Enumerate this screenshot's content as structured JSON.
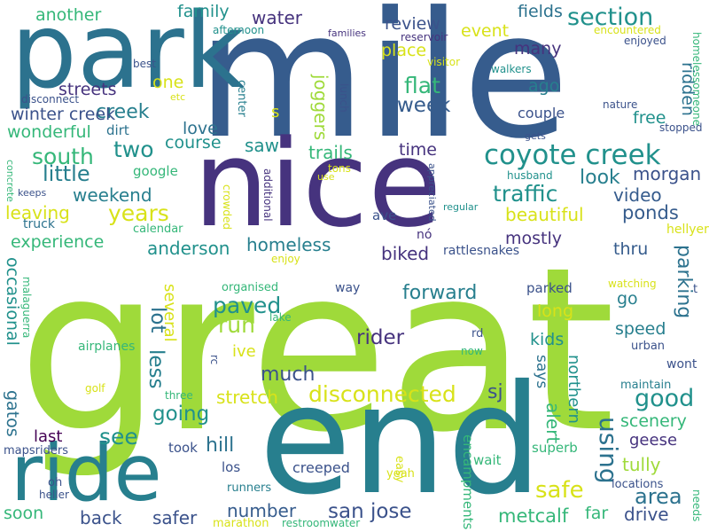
{
  "palette": {
    "purple": "#46337e",
    "indigo": "#3b528b",
    "blue": "#365c8d",
    "teal": "#277f8e",
    "sea": "#21918c",
    "green": "#35b779",
    "lime": "#9fda3a",
    "yellow": "#d8e219",
    "dark": "#440154"
  },
  "words": [
    {
      "text": "great",
      "color": "#9fda3a"
    },
    {
      "text": "mile",
      "color": "#365c8d"
    },
    {
      "text": "end",
      "color": "#277f8e"
    },
    {
      "text": "nice",
      "color": "#46337e"
    },
    {
      "text": "park",
      "color": "#2c728e"
    },
    {
      "text": "ride",
      "color": "#277f8e"
    },
    {
      "text": "coyote creek",
      "color": "#21918c"
    },
    {
      "text": "section",
      "color": "#21918c"
    },
    {
      "text": "disconnected",
      "color": "#d8e219"
    },
    {
      "text": "san jose",
      "color": "#3b528b"
    },
    {
      "text": "south",
      "color": "#35b779"
    },
    {
      "text": "years",
      "color": "#d8e219"
    },
    {
      "text": "paved",
      "color": "#21918c"
    },
    {
      "text": "run",
      "color": "#9fda3a"
    },
    {
      "text": "much",
      "color": "#3b528b"
    },
    {
      "text": "going",
      "color": "#21918c"
    },
    {
      "text": "stretch",
      "color": "#d8e219"
    },
    {
      "text": "safe",
      "color": "#d8e219"
    },
    {
      "text": "area",
      "color": "#2c728e"
    },
    {
      "text": "good",
      "color": "#21918c"
    },
    {
      "text": "ponds",
      "color": "#365c8d"
    },
    {
      "text": "traffic",
      "color": "#21918c"
    },
    {
      "text": "creek",
      "color": "#277f8e"
    },
    {
      "text": "week",
      "color": "#365c8d"
    },
    {
      "text": "flat",
      "color": "#35b779"
    },
    {
      "text": "little",
      "color": "#277f8e"
    },
    {
      "text": "two",
      "color": "#21918c"
    },
    {
      "text": "water",
      "color": "#46337e"
    },
    {
      "text": "rider",
      "color": "#46337e"
    },
    {
      "text": "parking",
      "color": "#2c728e"
    },
    {
      "text": "using",
      "color": "#2c728e"
    },
    {
      "text": "forward",
      "color": "#277f8e"
    },
    {
      "text": "see",
      "color": "#21918c"
    },
    {
      "text": "metcalf",
      "color": "#35b779"
    },
    {
      "text": "drive",
      "color": "#3b528b"
    },
    {
      "text": "last",
      "color": "#440154"
    },
    {
      "text": "back",
      "color": "#3b528b"
    },
    {
      "text": "safer",
      "color": "#3b528b"
    },
    {
      "text": "number",
      "color": "#365c8d"
    },
    {
      "text": "hill",
      "color": "#2c728e"
    },
    {
      "text": "occasional",
      "color": "#21918c"
    },
    {
      "text": "gatos",
      "color": "#2c728e"
    },
    {
      "text": "less",
      "color": "#277f8e"
    },
    {
      "text": "lot",
      "color": "#2c728e"
    },
    {
      "text": "several",
      "color": "#d8e219"
    },
    {
      "text": "homeless",
      "color": "#277f8e"
    },
    {
      "text": "anderson",
      "color": "#21918c"
    },
    {
      "text": "experience",
      "color": "#35b779"
    },
    {
      "text": "leaving",
      "color": "#d8e219"
    },
    {
      "text": "weekend",
      "color": "#277f8e"
    },
    {
      "text": "video",
      "color": "#365c8d"
    },
    {
      "text": "look",
      "color": "#277f8e"
    },
    {
      "text": "morgan",
      "color": "#3b528b"
    },
    {
      "text": "beautiful",
      "color": "#d8e219"
    },
    {
      "text": "time",
      "color": "#46337e"
    },
    {
      "text": "trails",
      "color": "#35b779"
    },
    {
      "text": "saw",
      "color": "#21918c"
    },
    {
      "text": "course",
      "color": "#21918c"
    },
    {
      "text": "love",
      "color": "#2c728e"
    },
    {
      "text": "wonderful",
      "color": "#35b779"
    },
    {
      "text": "winter creek",
      "color": "#3b528b"
    },
    {
      "text": "streets",
      "color": "#46337e"
    },
    {
      "text": "one",
      "color": "#d8e219"
    },
    {
      "text": "family",
      "color": "#21918c"
    },
    {
      "text": "another",
      "color": "#35b779"
    },
    {
      "text": "review",
      "color": "#3b528b"
    },
    {
      "text": "place",
      "color": "#d8e219"
    },
    {
      "text": "event",
      "color": "#d8e219"
    },
    {
      "text": "joggers",
      "color": "#9fda3a"
    },
    {
      "text": "ridden",
      "color": "#2c728e"
    },
    {
      "text": "fields",
      "color": "#2c728e"
    },
    {
      "text": "many",
      "color": "#46337e"
    },
    {
      "text": "ago",
      "color": "#277f8e"
    },
    {
      "text": "couple",
      "color": "#3b528b"
    },
    {
      "text": "free",
      "color": "#21918c"
    },
    {
      "text": "mostly",
      "color": "#46337e"
    },
    {
      "text": "biked",
      "color": "#46337e"
    },
    {
      "text": "thru",
      "color": "#365c8d"
    },
    {
      "text": "go",
      "color": "#277f8e"
    },
    {
      "text": "long",
      "color": "#d8e219"
    },
    {
      "text": "kids",
      "color": "#21918c"
    },
    {
      "text": "speed",
      "color": "#277f8e"
    },
    {
      "text": "says",
      "color": "#2c728e"
    },
    {
      "text": "alert",
      "color": "#35b779"
    },
    {
      "text": "northern",
      "color": "#21918c"
    },
    {
      "text": "sj",
      "color": "#3b528b"
    },
    {
      "text": "scenery",
      "color": "#35b779"
    },
    {
      "text": "geese",
      "color": "#46337e"
    },
    {
      "text": "tully",
      "color": "#9fda3a"
    },
    {
      "text": "far",
      "color": "#35b779"
    },
    {
      "text": "ive",
      "color": "#d8e219"
    },
    {
      "text": "s",
      "color": "#d8e219"
    },
    {
      "text": "soon",
      "color": "#35b779"
    },
    {
      "text": "creeped",
      "color": "#3b528b"
    },
    {
      "text": "dirt",
      "color": "#2c728e"
    },
    {
      "text": "google",
      "color": "#35b779"
    },
    {
      "text": "truck",
      "color": "#2c728e"
    },
    {
      "text": "calendar",
      "color": "#35b779"
    },
    {
      "text": "ave",
      "color": "#3b528b"
    },
    {
      "text": "nó",
      "color": "#46337e"
    },
    {
      "text": "hellyer",
      "color": "#d8e219"
    },
    {
      "text": "encampments",
      "color": "#35b779"
    },
    {
      "text": "los",
      "color": "#3b528b"
    },
    {
      "text": "took",
      "color": "#3b528b"
    },
    {
      "text": "easy",
      "color": "#d8e219"
    },
    {
      "text": "superb",
      "color": "#35b779"
    },
    {
      "text": "wait",
      "color": "#35b779"
    },
    {
      "text": "locations",
      "color": "#3b528b"
    },
    {
      "text": "rattlesnakes",
      "color": "#3b528b"
    },
    {
      "text": "airplanes",
      "color": "#35b779"
    },
    {
      "text": "malaguerra",
      "color": "#35b779"
    },
    {
      "text": "mapsriders",
      "color": "#3b528b"
    },
    {
      "text": "heller",
      "color": "#3b528b"
    },
    {
      "text": "oh",
      "color": "#3b528b"
    },
    {
      "text": "runners",
      "color": "#277f8e"
    },
    {
      "text": "marathon",
      "color": "#d8e219"
    },
    {
      "text": "restroomwater",
      "color": "#35b779"
    },
    {
      "text": "yeah",
      "color": "#d8e219"
    },
    {
      "text": "three",
      "color": "#35b779"
    },
    {
      "text": "golf",
      "color": "#d8e219"
    },
    {
      "text": "rc",
      "color": "#3b528b"
    },
    {
      "text": "rd",
      "color": "#3b528b"
    },
    {
      "text": "now",
      "color": "#35b779"
    },
    {
      "text": "wont",
      "color": "#3b528b"
    },
    {
      "text": "maintain",
      "color": "#277f8e"
    },
    {
      "text": "urban",
      "color": "#3b528b"
    },
    {
      "text": "watching",
      "color": "#d8e219"
    },
    {
      "text": "parked",
      "color": "#3b528b"
    },
    {
      "text": "way",
      "color": "#3b528b"
    },
    {
      "text": "lake",
      "color": "#35b779"
    },
    {
      "text": "organised",
      "color": "#35b779"
    },
    {
      "text": "enjoy",
      "color": "#d8e219"
    },
    {
      "text": "t",
      "color": "#3b528b"
    },
    {
      "text": "needs",
      "color": "#35b779"
    },
    {
      "text": "additional",
      "color": "#46337e"
    },
    {
      "text": "crowded",
      "color": "#d8e219"
    },
    {
      "text": "use",
      "color": "#d8e219"
    },
    {
      "text": "tons",
      "color": "#d8e219"
    },
    {
      "text": "keeps",
      "color": "#3b528b"
    },
    {
      "text": "concrete",
      "color": "#35b779"
    },
    {
      "text": "center",
      "color": "#277f8e"
    },
    {
      "text": "afternoon",
      "color": "#21918c"
    },
    {
      "text": "families",
      "color": "#46337e"
    },
    {
      "text": "reservoir",
      "color": "#46337e"
    },
    {
      "text": "visitor",
      "color": "#d8e219"
    },
    {
      "text": "lunch",
      "color": "#3b528b"
    },
    {
      "text": "walkers",
      "color": "#21918c"
    },
    {
      "text": "encountered",
      "color": "#d8e219"
    },
    {
      "text": "enjoyed",
      "color": "#3b528b"
    },
    {
      "text": "homelessomeone",
      "color": "#35b779"
    },
    {
      "text": "nature",
      "color": "#3b528b"
    },
    {
      "text": "stopped",
      "color": "#3b528b"
    },
    {
      "text": "gets",
      "color": "#3b528b"
    },
    {
      "text": "husband",
      "color": "#21918c"
    },
    {
      "text": "regular",
      "color": "#21918c"
    },
    {
      "text": "appreciated",
      "color": "#3b528b"
    },
    {
      "text": "best",
      "color": "#3b528b"
    },
    {
      "text": "etc",
      "color": "#d8e219"
    },
    {
      "text": "disconnect",
      "color": "#3b528b"
    }
  ]
}
